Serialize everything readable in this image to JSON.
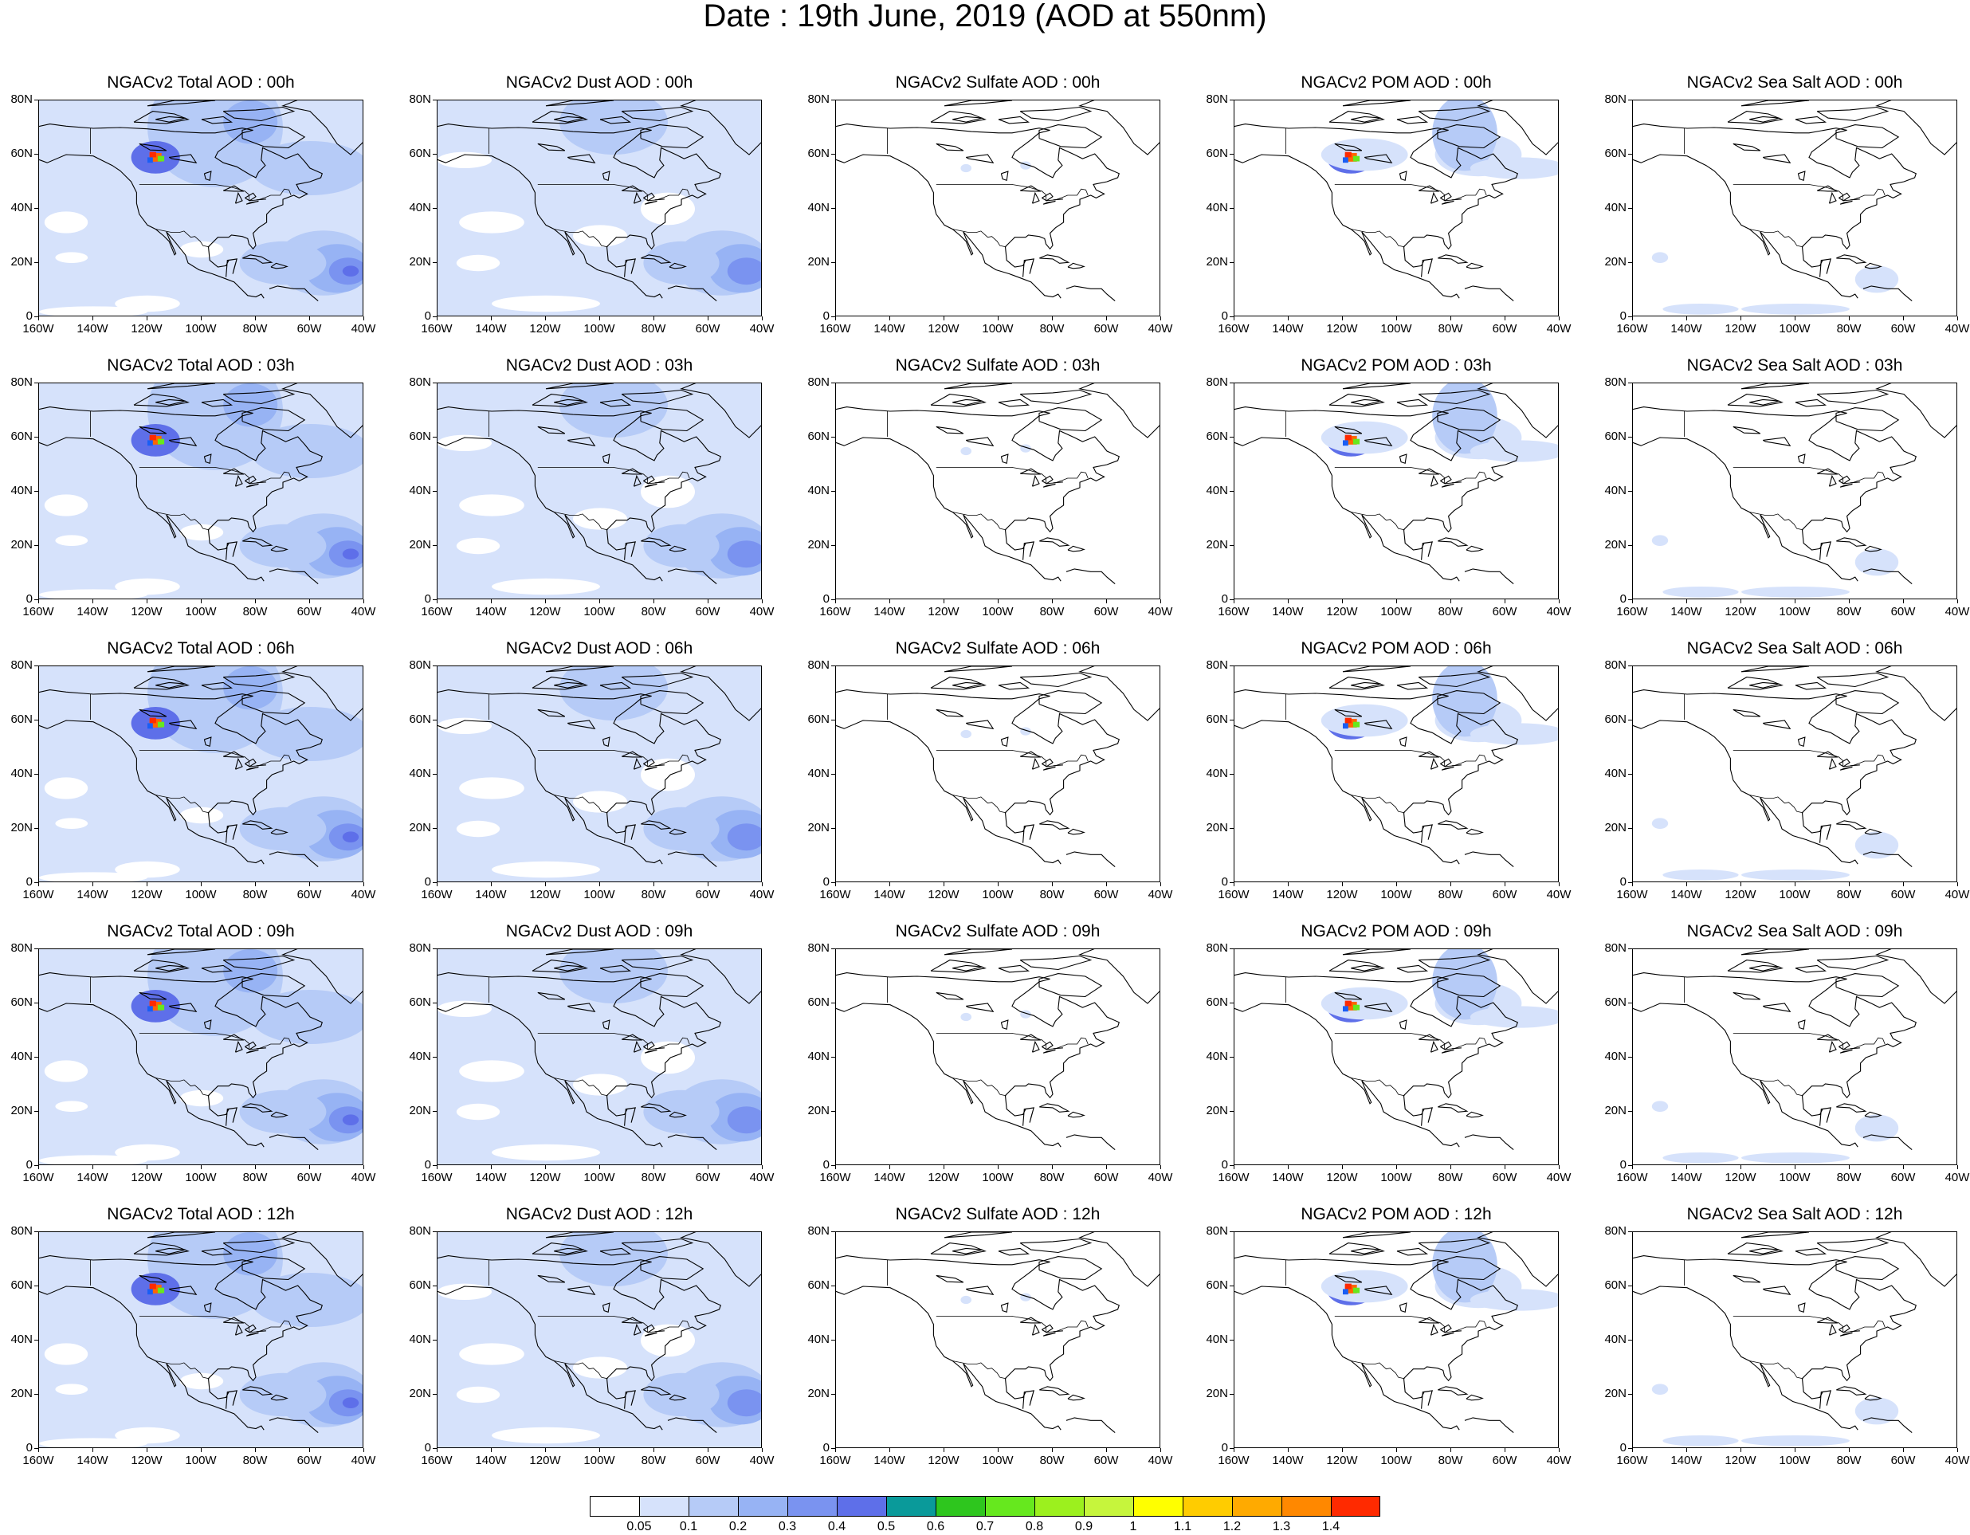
{
  "title": "Date : 19th June, 2019 (AOD at 550nm)",
  "row_hours": [
    "00h",
    "03h",
    "06h",
    "09h",
    "12h"
  ],
  "panel_titles": [
    [
      "NGACv2 Total AOD : 00h",
      "NGACv2 Dust AOD : 00h",
      "NGACv2 Sulfate AOD : 00h",
      "NGACv2 POM AOD : 00h",
      "NGACv2 Sea Salt AOD : 00h"
    ],
    [
      "NGACv2 Total AOD : 03h",
      "NGACv2 Dust AOD : 03h",
      "NGACv2 Sulfate AOD : 03h",
      "NGACv2 POM AOD : 03h",
      "NGACv2 Sea Salt AOD : 03h"
    ],
    [
      "NGACv2 Total AOD : 06h",
      "NGACv2 Dust AOD : 06h",
      "NGACv2 Sulfate AOD : 06h",
      "NGACv2 POM AOD : 06h",
      "NGACv2 Sea Salt AOD : 06h"
    ],
    [
      "NGACv2 Total AOD : 09h",
      "NGACv2 Dust AOD : 09h",
      "NGACv2 Sulfate AOD : 09h",
      "NGACv2 POM AOD : 09h",
      "NGACv2 Sea Salt  AOD : 09h"
    ],
    [
      "NGACv2 Total AOD  : 12h",
      "NGACv2 Dust AOD : 12h",
      "NGACv2 Sulfate AOD : 12h",
      "NGACv2 POM  AOD : 12h",
      "NGACv2 Sea Salt  AOD : 12h"
    ]
  ],
  "lat_labels": [
    "80N",
    "60N",
    "40N",
    "20N",
    "0"
  ],
  "lon_labels": [
    "160W",
    "140W",
    "120W",
    "100W",
    "80W",
    "60W",
    "40W"
  ],
  "map_extent": {
    "lon_min": -160,
    "lon_max": -40,
    "lat_min": 0,
    "lat_max": 80
  },
  "colorbar": {
    "colors": [
      "#ffffff",
      "#d6e2fb",
      "#b6cbf7",
      "#97b3f4",
      "#7a93f0",
      "#5e6fe9",
      "#1a5ef5",
      "#0a9a9a",
      "#2ec61e",
      "#66e81e",
      "#9cf01e",
      "#c6f53c",
      "#ffff00",
      "#ffcc00",
      "#ffaa00",
      "#ff8800",
      "#ff6600",
      "#ff2a00"
    ],
    "labels": [
      "0.05",
      "0.1",
      "0.2",
      "0.3",
      "0.4",
      "0.5",
      "0.6",
      "0.7",
      "0.8",
      "0.9",
      "1",
      "1.1",
      "1.2",
      "1.3",
      "1.4"
    ]
  },
  "species": [
    "Total",
    "Dust",
    "Sulfate",
    "POM",
    "Sea Salt"
  ]
}
